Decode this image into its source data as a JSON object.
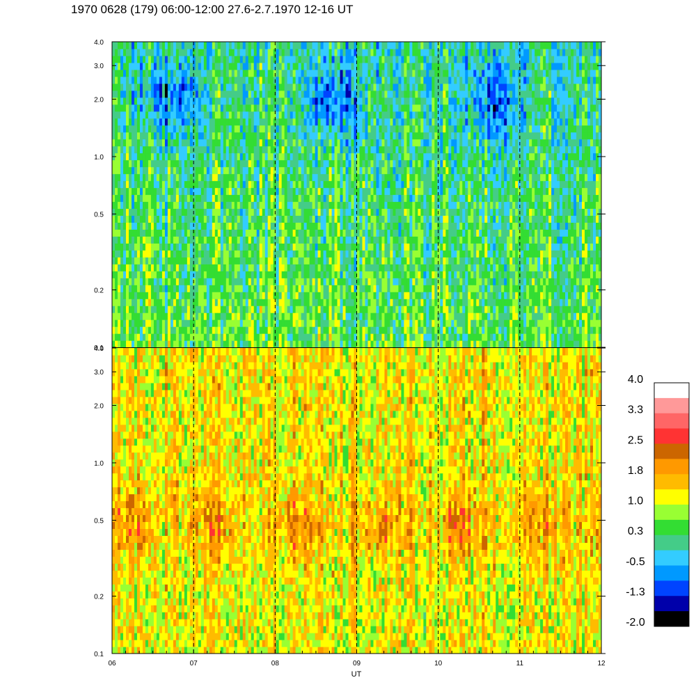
{
  "title": "1970 0628 (179) 06:00-12:00 27.6-2.7.1970  12-16 UT",
  "chart_data": {
    "type": "heatmap",
    "xlabel": "UT",
    "x_ticks": [
      "06",
      "07",
      "08",
      "09",
      "10",
      "11",
      "12"
    ],
    "x_range": [
      6,
      12
    ],
    "dashed_hours": [
      7,
      8,
      9,
      10,
      11
    ],
    "y_scale": "log",
    "y_range": [
      0.1,
      4.0
    ],
    "y_ticks": [
      {
        "value": 0.1,
        "label": "0.1"
      },
      {
        "value": 0.2,
        "label": "0.2"
      },
      {
        "value": 0.5,
        "label": "0.5"
      },
      {
        "value": 1.0,
        "label": "1.0"
      },
      {
        "value": 2.0,
        "label": "2.0"
      },
      {
        "value": 3.0,
        "label": "3.0"
      },
      {
        "value": 4.0,
        "label": "4.0"
      }
    ],
    "panels": [
      {
        "name": "",
        "typical_level_low_freq": 0.5,
        "typical_level_high_freq": 0.0
      },
      {
        "name": "",
        "typical_level_low_freq": 1.2,
        "typical_level_high_freq": 1.3
      }
    ],
    "colorbar": {
      "labels": [
        "4.0",
        "3.3",
        "2.5",
        "1.8",
        "1.0",
        "0.3",
        "-0.5",
        "-1.3",
        "-2.0"
      ],
      "range": [
        -2.0,
        4.0
      ],
      "colors": [
        "#ffffff",
        "#ff9999",
        "#ff6666",
        "#ff3333",
        "#cc6600",
        "#ff9900",
        "#ffbb00",
        "#ffff00",
        "#99ff33",
        "#33dd33",
        "#44cc88",
        "#33ccff",
        "#0099ff",
        "#0044ff",
        "#0000aa",
        "#000000"
      ]
    }
  }
}
